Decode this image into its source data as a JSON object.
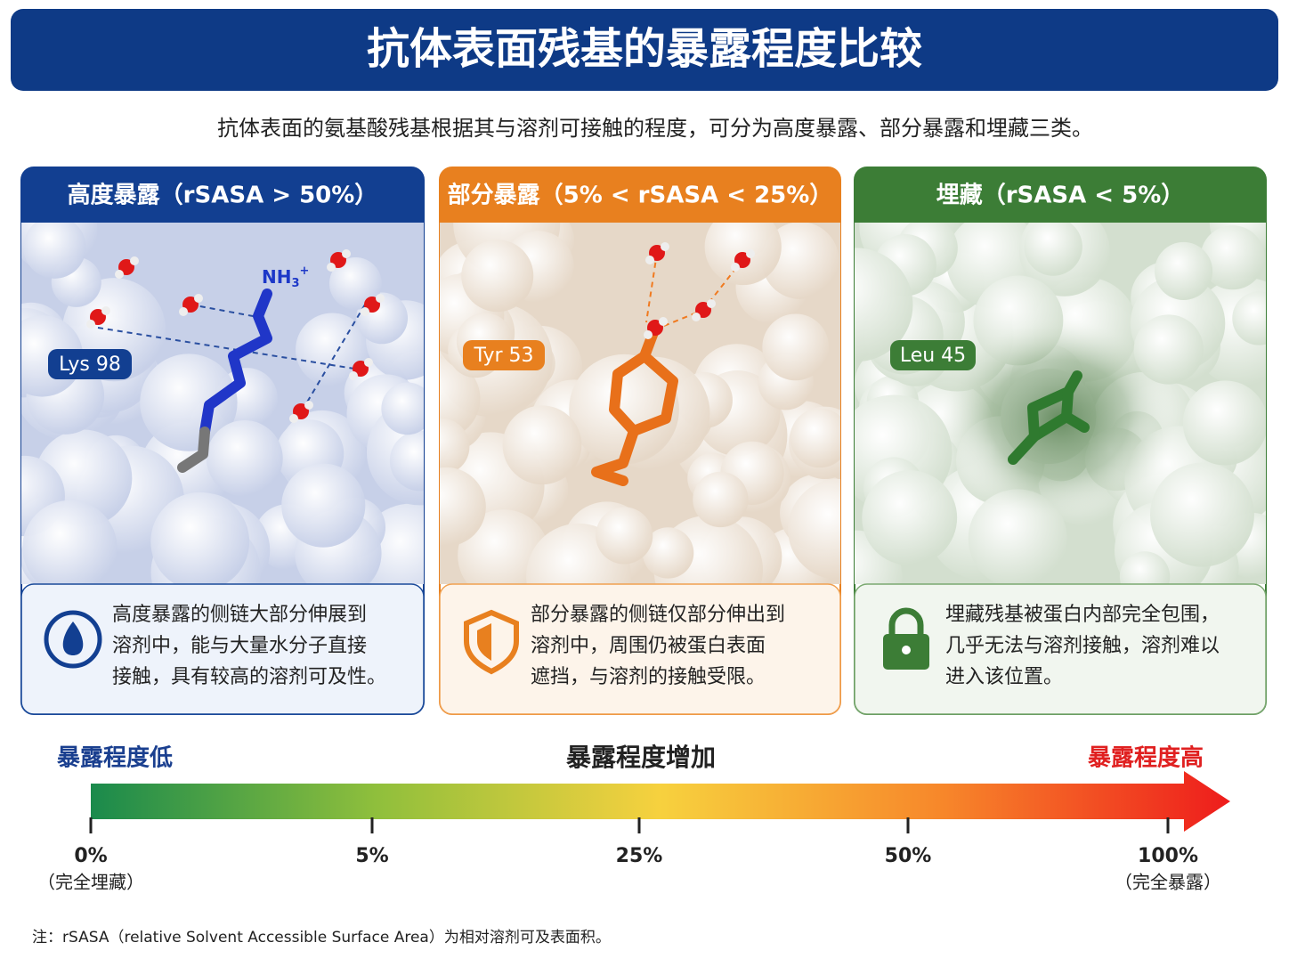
{
  "header": {
    "title": "抗体表面残基的暴露程度比较",
    "subtitle": "抗体表面的氨基酸残基根据其与溶剂可接触的程度，可分为高度暴露、部分暴露和埋藏三类。"
  },
  "panels": [
    {
      "title": "高度暴露（rSASA > 50%）",
      "residue": "Lys 98",
      "group": {
        "text": "NH",
        "sub": "3",
        "sup": "+"
      },
      "description": [
        "高度暴露的侧链大部分伸展到",
        "溶剂中，能与大量水分子直接",
        "接触，具有较高的溶剂可及性。"
      ]
    },
    {
      "title": "部分暴露（5% < rSASA < 25%）",
      "residue": "Tyr 53",
      "description": [
        "部分暴露的侧链仅部分伸出到",
        "溶剂中，周围仍被蛋白表面",
        "遮挡，与溶剂的接触受限。"
      ]
    },
    {
      "title": "埋藏（rSASA < 5%）",
      "residue": "Leu 45",
      "description": [
        "埋藏残基被蛋白内部完全包围，",
        "几乎无法与溶剂接触，溶剂难以",
        "进入该位置。"
      ]
    }
  ],
  "scale": {
    "low": "暴露程度低",
    "middle": "暴露程度增加",
    "high": "暴露程度高",
    "ticks": [
      {
        "label": "0%",
        "note": "（完全埋藏）"
      },
      {
        "label": "5%"
      },
      {
        "label": "25%"
      },
      {
        "label": "50%"
      },
      {
        "label": "100%",
        "note": "（完全暴露）"
      }
    ]
  },
  "footnote": "注：rSASA（relative Solvent Accessible Surface Area）为相对溶剂可及表面积。"
}
